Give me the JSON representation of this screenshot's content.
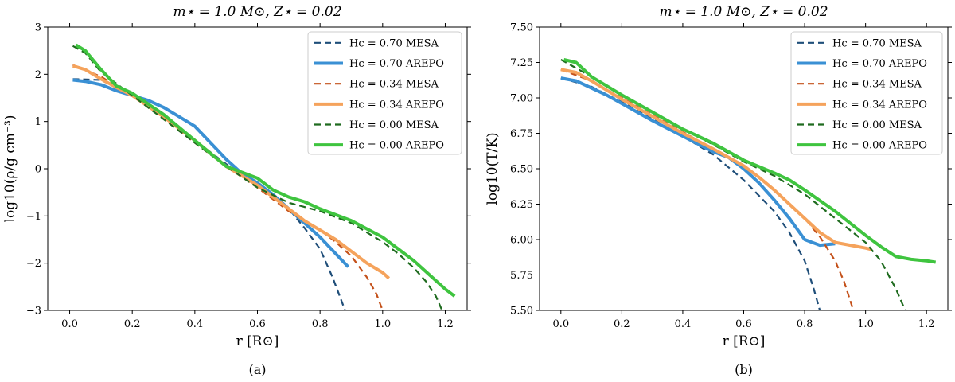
{
  "chart_data": [
    {
      "type": "line",
      "panel_caption": "(a)",
      "title": "m⋆ = 1.0 M⊙, Z⋆ = 0.02",
      "xlabel": "r [R⊙]",
      "ylabel": "log10(ρ/g cm⁻³)",
      "xlim": [
        -0.07,
        1.27
      ],
      "ylim": [
        -3,
        3
      ],
      "xticks": [
        "0.0",
        "0.2",
        "0.4",
        "0.6",
        "0.8",
        "1.0",
        "1.2"
      ],
      "yticks": [
        "−3",
        "−2",
        "−1",
        "0",
        "1",
        "2",
        "3"
      ],
      "grid": false,
      "legend_position": "top-right",
      "series": [
        {
          "name": "Hc = 0.70 MESA",
          "color": "#1f4e79",
          "style": "dashed",
          "x": [
            0.01,
            0.1,
            0.2,
            0.3,
            0.4,
            0.5,
            0.6,
            0.7,
            0.75,
            0.8,
            0.84,
            0.86,
            0.88
          ],
          "y": [
            1.9,
            1.88,
            1.55,
            1.15,
            0.6,
            0.1,
            -0.35,
            -0.85,
            -1.25,
            -1.7,
            -2.3,
            -2.65,
            -3.0
          ]
        },
        {
          "name": "Hc = 0.70 AREPO",
          "color": "#3a90d4",
          "style": "solid",
          "x": [
            0.01,
            0.05,
            0.1,
            0.15,
            0.2,
            0.25,
            0.3,
            0.35,
            0.4,
            0.45,
            0.5,
            0.55,
            0.6,
            0.65,
            0.7,
            0.75,
            0.8,
            0.85,
            0.89
          ],
          "y": [
            1.88,
            1.85,
            1.78,
            1.65,
            1.55,
            1.45,
            1.3,
            1.1,
            0.9,
            0.55,
            0.2,
            -0.1,
            -0.3,
            -0.55,
            -0.85,
            -1.15,
            -1.45,
            -1.8,
            -2.08
          ]
        },
        {
          "name": "Hc = 0.34 MESA",
          "color": "#c4511a",
          "style": "dashed",
          "x": [
            0.01,
            0.1,
            0.2,
            0.3,
            0.4,
            0.5,
            0.6,
            0.7,
            0.8,
            0.85,
            0.9,
            0.95,
            0.98,
            1.0
          ],
          "y": [
            2.2,
            1.95,
            1.55,
            1.1,
            0.55,
            0.05,
            -0.4,
            -0.9,
            -1.3,
            -1.55,
            -1.85,
            -2.3,
            -2.65,
            -3.0
          ]
        },
        {
          "name": "Hc = 0.34 AREPO",
          "color": "#f5a35c",
          "style": "solid",
          "x": [
            0.01,
            0.05,
            0.1,
            0.15,
            0.2,
            0.3,
            0.4,
            0.5,
            0.6,
            0.65,
            0.7,
            0.75,
            0.8,
            0.85,
            0.9,
            0.95,
            1.0,
            1.02
          ],
          "y": [
            2.18,
            2.1,
            1.9,
            1.72,
            1.55,
            1.1,
            0.6,
            0.05,
            -0.35,
            -0.6,
            -0.85,
            -1.1,
            -1.3,
            -1.5,
            -1.75,
            -2.0,
            -2.2,
            -2.32
          ]
        },
        {
          "name": "Hc = 0.00 MESA",
          "color": "#1f6b1f",
          "style": "dashed",
          "x": [
            0.01,
            0.05,
            0.1,
            0.2,
            0.3,
            0.4,
            0.5,
            0.6,
            0.7,
            0.8,
            0.9,
            1.0,
            1.05,
            1.1,
            1.14,
            1.17,
            1.19
          ],
          "y": [
            2.6,
            2.45,
            2.05,
            1.55,
            1.05,
            0.55,
            0.05,
            -0.4,
            -0.72,
            -0.9,
            -1.15,
            -1.55,
            -1.8,
            -2.1,
            -2.4,
            -2.7,
            -3.0
          ]
        },
        {
          "name": "Hc = 0.00 AREPO",
          "color": "#3fc43f",
          "style": "solid",
          "x": [
            0.02,
            0.05,
            0.1,
            0.15,
            0.2,
            0.3,
            0.4,
            0.5,
            0.6,
            0.65,
            0.7,
            0.75,
            0.8,
            0.9,
            1.0,
            1.1,
            1.15,
            1.2,
            1.23
          ],
          "y": [
            2.62,
            2.5,
            2.1,
            1.75,
            1.6,
            1.15,
            0.6,
            0.05,
            -0.2,
            -0.45,
            -0.6,
            -0.7,
            -0.85,
            -1.1,
            -1.45,
            -1.95,
            -2.25,
            -2.55,
            -2.7
          ]
        }
      ]
    },
    {
      "type": "line",
      "panel_caption": "(b)",
      "title": "m⋆ = 1.0 M⊙, Z⋆ = 0.02",
      "xlabel": "r [R⊙]",
      "ylabel": "log10(T/K)",
      "xlim": [
        -0.07,
        1.27
      ],
      "ylim": [
        5.5,
        7.5
      ],
      "xticks": [
        "0.0",
        "0.2",
        "0.4",
        "0.6",
        "0.8",
        "1.0",
        "1.2"
      ],
      "yticks": [
        "5.50",
        "5.75",
        "6.00",
        "6.25",
        "6.50",
        "6.75",
        "7.00",
        "7.25",
        "7.50"
      ],
      "grid": false,
      "legend_position": "top-right",
      "series": [
        {
          "name": "Hc = 0.70 MESA",
          "color": "#1f4e79",
          "style": "dashed",
          "x": [
            0.0,
            0.1,
            0.2,
            0.3,
            0.4,
            0.5,
            0.6,
            0.7,
            0.75,
            0.8,
            0.83,
            0.85
          ],
          "y": [
            7.14,
            7.08,
            6.97,
            6.85,
            6.73,
            6.6,
            6.42,
            6.2,
            6.05,
            5.85,
            5.65,
            5.5
          ]
        },
        {
          "name": "Hc = 0.70 AREPO",
          "color": "#3a90d4",
          "style": "solid",
          "x": [
            0.0,
            0.05,
            0.1,
            0.15,
            0.2,
            0.3,
            0.4,
            0.5,
            0.55,
            0.6,
            0.65,
            0.7,
            0.75,
            0.8,
            0.85,
            0.9
          ],
          "y": [
            7.14,
            7.12,
            7.07,
            7.02,
            6.96,
            6.84,
            6.73,
            6.62,
            6.58,
            6.5,
            6.4,
            6.28,
            6.15,
            6.0,
            5.96,
            5.97
          ]
        },
        {
          "name": "Hc = 0.34 MESA",
          "color": "#c4511a",
          "style": "dashed",
          "x": [
            0.0,
            0.1,
            0.2,
            0.3,
            0.4,
            0.5,
            0.6,
            0.7,
            0.8,
            0.85,
            0.9,
            0.93,
            0.96
          ],
          "y": [
            7.2,
            7.12,
            7.0,
            6.88,
            6.76,
            6.64,
            6.52,
            6.35,
            6.15,
            6.02,
            5.85,
            5.7,
            5.5
          ]
        },
        {
          "name": "Hc = 0.34 AREPO",
          "color": "#f5a35c",
          "style": "solid",
          "x": [
            0.0,
            0.05,
            0.1,
            0.2,
            0.3,
            0.4,
            0.5,
            0.6,
            0.65,
            0.7,
            0.75,
            0.8,
            0.85,
            0.9,
            0.95,
            1.0,
            1.02
          ],
          "y": [
            7.2,
            7.18,
            7.12,
            6.99,
            6.87,
            6.75,
            6.64,
            6.52,
            6.44,
            6.35,
            6.25,
            6.15,
            6.05,
            5.98,
            5.96,
            5.94,
            5.93
          ]
        },
        {
          "name": "Hc = 0.00 MESA",
          "color": "#1f6b1f",
          "style": "dashed",
          "x": [
            0.0,
            0.1,
            0.2,
            0.3,
            0.4,
            0.5,
            0.6,
            0.7,
            0.8,
            0.9,
            1.0,
            1.05,
            1.1,
            1.13
          ],
          "y": [
            7.27,
            7.15,
            7.02,
            6.9,
            6.78,
            6.67,
            6.55,
            6.45,
            6.32,
            6.15,
            5.98,
            5.85,
            5.65,
            5.5
          ]
        },
        {
          "name": "Hc = 0.00 AREPO",
          "color": "#3fc43f",
          "style": "solid",
          "x": [
            0.01,
            0.05,
            0.1,
            0.2,
            0.3,
            0.4,
            0.5,
            0.6,
            0.7,
            0.75,
            0.8,
            0.9,
            1.0,
            1.05,
            1.1,
            1.15,
            1.2,
            1.23
          ],
          "y": [
            7.27,
            7.25,
            7.15,
            7.02,
            6.9,
            6.78,
            6.68,
            6.56,
            6.47,
            6.42,
            6.35,
            6.2,
            6.03,
            5.95,
            5.88,
            5.86,
            5.85,
            5.84
          ]
        }
      ]
    }
  ]
}
